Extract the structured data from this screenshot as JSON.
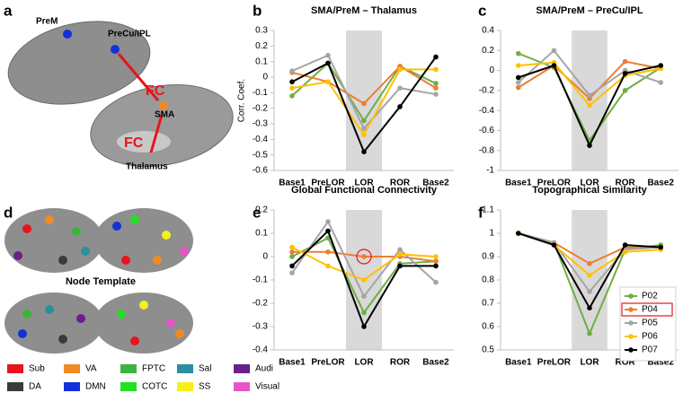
{
  "figure": {
    "panel_labels": [
      "a",
      "d"
    ],
    "brain_labels": [
      "PreM",
      "PreCu/IPL",
      "FC",
      "SMA",
      "FC",
      "Thalamus"
    ],
    "node_template": {
      "title": "Node Template",
      "items": [
        {
          "name": "Sub",
          "color": "#e8141b"
        },
        {
          "name": "VA",
          "color": "#f08a24"
        },
        {
          "name": "FPTC",
          "color": "#3cb43c"
        },
        {
          "name": "Sal",
          "color": "#2a8fa0"
        },
        {
          "name": "Audi",
          "color": "#6a1f8a"
        },
        {
          "name": "DA",
          "color": "#3a3a3a"
        },
        {
          "name": "DMN",
          "color": "#1530d8"
        },
        {
          "name": "COTC",
          "color": "#22e022"
        },
        {
          "name": "SS",
          "color": "#f5f018"
        },
        {
          "name": "Visual",
          "color": "#e855c8"
        }
      ]
    }
  },
  "chart_data": [
    {
      "type": "line",
      "panel": "b",
      "title": "SMA/PreM – Thalamus",
      "y_label": "Corr. Coef.",
      "categories": [
        "Base1",
        "PreLOR",
        "LOR",
        "ROR",
        "Base2"
      ],
      "ylim": [
        -0.6,
        0.3
      ],
      "yticks": [
        -0.6,
        -0.5,
        -0.4,
        -0.3,
        -0.2,
        -0.1,
        0,
        0.1,
        0.2,
        0.3
      ],
      "series": [
        {
          "color": "#70ad47",
          "values": [
            -0.12,
            0.09,
            -0.28,
            0.07,
            -0.04
          ]
        },
        {
          "color": "#ed7d31",
          "values": [
            0.03,
            -0.03,
            -0.17,
            0.07,
            -0.07
          ]
        },
        {
          "color": "#a5a5a5",
          "values": [
            0.04,
            0.14,
            -0.33,
            -0.07,
            -0.11
          ]
        },
        {
          "color": "#ffc000",
          "values": [
            -0.07,
            -0.03,
            -0.37,
            0.05,
            0.05
          ]
        },
        {
          "color": "#000000",
          "values": [
            -0.03,
            0.09,
            -0.48,
            -0.19,
            0.13
          ]
        }
      ]
    },
    {
      "type": "line",
      "panel": "c",
      "title": "SMA/PreM – PreCu/IPL",
      "categories": [
        "Base1",
        "PreLOR",
        "LOR",
        "ROR",
        "Base2"
      ],
      "ylim": [
        -1,
        0.4
      ],
      "yticks": [
        -1,
        -0.8,
        -0.6,
        -0.4,
        -0.2,
        0,
        0.2,
        0.4
      ],
      "series": [
        {
          "color": "#70ad47",
          "values": [
            0.17,
            0.03,
            -0.7,
            -0.2,
            0.03
          ]
        },
        {
          "color": "#ed7d31",
          "values": [
            -0.17,
            0.05,
            -0.28,
            0.09,
            0.02
          ]
        },
        {
          "color": "#a5a5a5",
          "values": [
            -0.12,
            0.2,
            -0.25,
            0.0,
            -0.12
          ]
        },
        {
          "color": "#ffc000",
          "values": [
            0.05,
            0.08,
            -0.35,
            -0.05,
            0.02
          ]
        },
        {
          "color": "#000000",
          "values": [
            -0.07,
            0.05,
            -0.75,
            -0.03,
            0.05
          ]
        }
      ]
    },
    {
      "type": "line",
      "panel": "e",
      "title": "Global Functional Connectivity",
      "categories": [
        "Base1",
        "PreLOR",
        "LOR",
        "ROR",
        "Base2"
      ],
      "ylim": [
        -0.4,
        0.2
      ],
      "yticks": [
        -0.4,
        -0.3,
        -0.2,
        -0.1,
        0,
        0.1,
        0.2
      ],
      "series": [
        {
          "color": "#70ad47",
          "values": [
            0.0,
            0.08,
            -0.24,
            -0.03,
            -0.02
          ]
        },
        {
          "color": "#ed7d31",
          "values": [
            0.02,
            0.02,
            0.0,
            0.0,
            -0.02
          ]
        },
        {
          "color": "#a5a5a5",
          "values": [
            -0.07,
            0.15,
            -0.17,
            0.03,
            -0.11
          ]
        },
        {
          "color": "#ffc000",
          "values": [
            0.04,
            -0.04,
            -0.1,
            0.01,
            0.0
          ]
        },
        {
          "color": "#000000",
          "values": [
            -0.04,
            0.11,
            -0.3,
            -0.04,
            -0.04
          ]
        }
      ]
    },
    {
      "type": "line",
      "panel": "f",
      "title": "Topographical Similarity",
      "categories": [
        "Base1",
        "PreLOR",
        "LOR",
        "ROR",
        "Base2"
      ],
      "ylim": [
        0.5,
        1.1
      ],
      "yticks": [
        0.5,
        0.6,
        0.7,
        0.8,
        0.9,
        1,
        1.1
      ],
      "series": [
        {
          "name": "P02",
          "color": "#70ad47",
          "values": [
            1,
            0.96,
            0.57,
            0.93,
            0.95
          ]
        },
        {
          "name": "P04",
          "color": "#ed7d31",
          "values": [
            1,
            0.96,
            0.87,
            0.94,
            0.94
          ]
        },
        {
          "name": "P05",
          "color": "#a5a5a5",
          "values": [
            1,
            0.96,
            0.75,
            0.93,
            0.94
          ]
        },
        {
          "name": "P06",
          "color": "#ffc000",
          "values": [
            1,
            0.95,
            0.82,
            0.92,
            0.93
          ]
        },
        {
          "name": "P07",
          "color": "#000000",
          "values": [
            1,
            0.95,
            0.68,
            0.95,
            0.94
          ]
        }
      ]
    }
  ]
}
